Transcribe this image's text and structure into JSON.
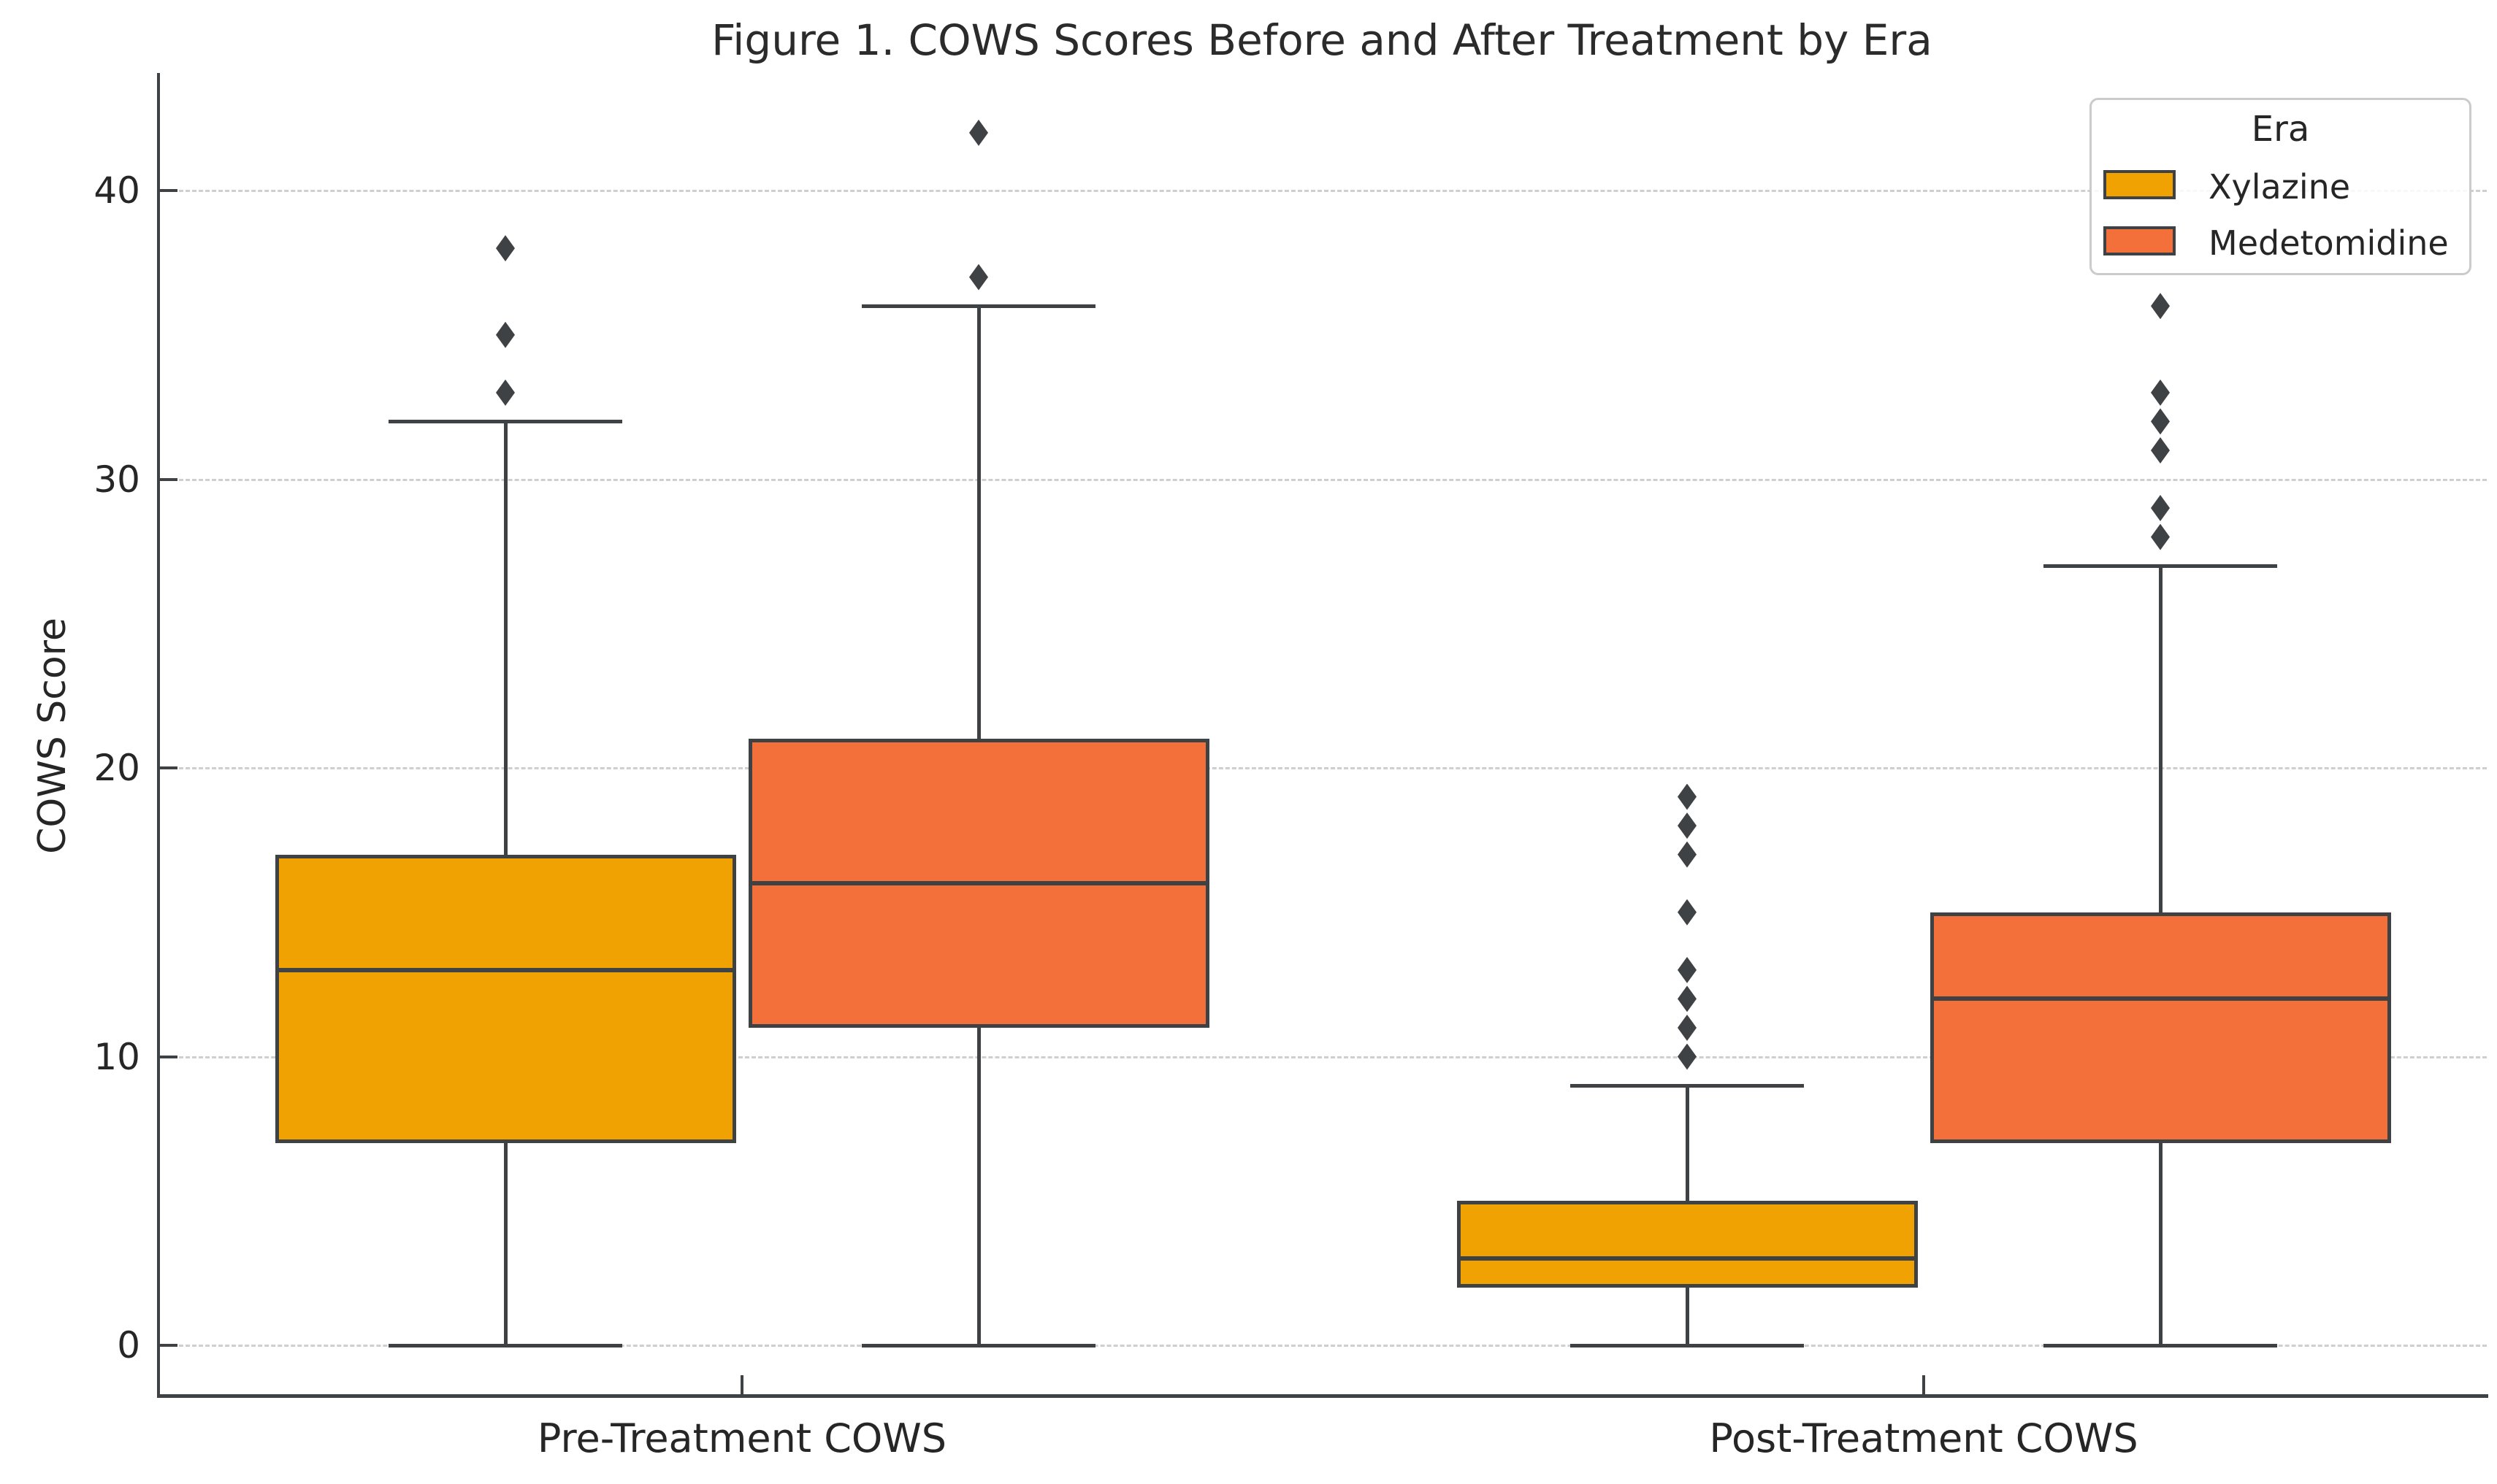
{
  "figure": {
    "title": "Figure 1. COWS Scores Before and After Treatment by Era"
  },
  "chart_data": {
    "type": "boxplot",
    "title": "Figure 1. COWS Scores Before and After Treatment by Era",
    "xlabel": "",
    "ylabel": "COWS Score",
    "categories": [
      "Pre-Treatment COWS",
      "Post-Treatment COWS"
    ],
    "yticks": [
      0,
      10,
      20,
      30,
      40
    ],
    "ylim": [
      -3,
      44
    ],
    "grid": "horizontal-dashed",
    "gridline_color": "#CFCFCF",
    "line_color": "#3F4245",
    "text_color": "#262626",
    "legend": {
      "title": "Era",
      "position": "upper-right"
    },
    "series": [
      {
        "name": "Xylazine",
        "color": "#F0A202",
        "boxes": [
          {
            "category": "Pre-Treatment COWS",
            "whisker_low": 0,
            "q1": 7,
            "median": 13,
            "q3": 17,
            "whisker_high": 32,
            "outliers": [
              33,
              35,
              38
            ]
          },
          {
            "category": "Post-Treatment COWS",
            "whisker_low": 0,
            "q1": 2,
            "median": 3,
            "q3": 5,
            "whisker_high": 9,
            "outliers": [
              10,
              11,
              12,
              13,
              15,
              17,
              18,
              19
            ]
          }
        ]
      },
      {
        "name": "Medetomidine",
        "color": "#F4703A",
        "boxes": [
          {
            "category": "Pre-Treatment COWS",
            "whisker_low": 0,
            "q1": 11,
            "median": 16,
            "q3": 21,
            "whisker_high": 36,
            "outliers": [
              37,
              42
            ]
          },
          {
            "category": "Post-Treatment COWS",
            "whisker_low": 0,
            "q1": 7,
            "median": 12,
            "q3": 15,
            "whisker_high": 27,
            "outliers": [
              28,
              29,
              31,
              32,
              33,
              36
            ]
          }
        ]
      }
    ]
  }
}
